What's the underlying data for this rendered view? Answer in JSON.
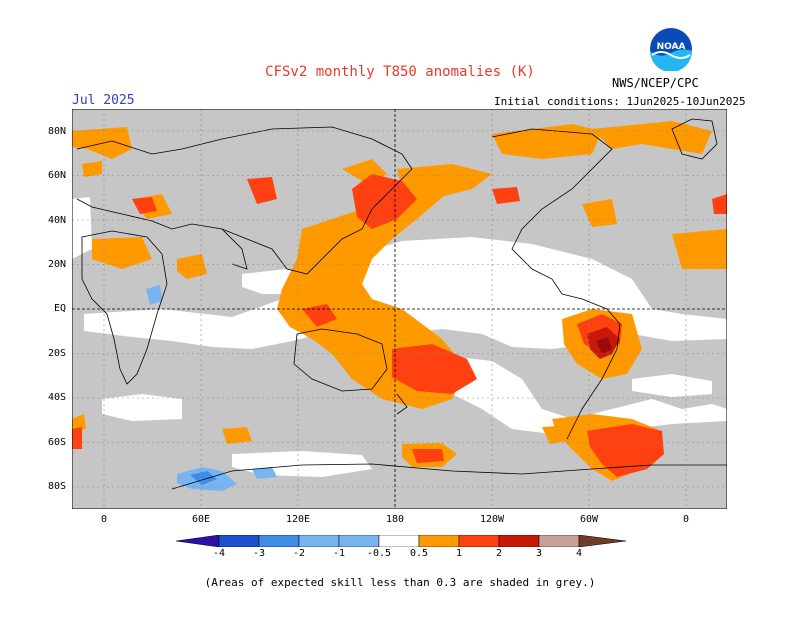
{
  "header": {
    "title": "CFSv2 monthly T850 anomalies (K)",
    "period": "Jul 2025",
    "organization": "NWS/NCEP/CPC",
    "logo_text": "NOAA",
    "initial_conditions": "Initial conditions: 1Jun2025-10Jun2025"
  },
  "axes": {
    "latitude_labels": [
      "80N",
      "60N",
      "40N",
      "20N",
      "EQ",
      "20S",
      "40S",
      "60S",
      "80S"
    ],
    "longitude_labels": [
      "0",
      "60E",
      "120E",
      "180",
      "120W",
      "60W",
      "0"
    ]
  },
  "colorbar": {
    "labels": [
      "-4",
      "-3",
      "-2",
      "-1",
      "-0.5",
      "0.5",
      "1",
      "2",
      "3",
      "4"
    ],
    "colors": [
      "#2d10a5",
      "#1e4fd0",
      "#3f8be6",
      "#78b4f2",
      "#ffffff",
      "#ff9900",
      "#ff4010",
      "#c81808",
      "#9b0a0a",
      "#c8a096",
      "#6e3c28"
    ]
  },
  "footnote": "(Areas of expected skill less than 0.3 are shaded in grey.)",
  "colors": {
    "skill_grey": "#c6c6c6",
    "title_red": "#e83a2a",
    "period_blue": "#2f3fc0"
  }
}
